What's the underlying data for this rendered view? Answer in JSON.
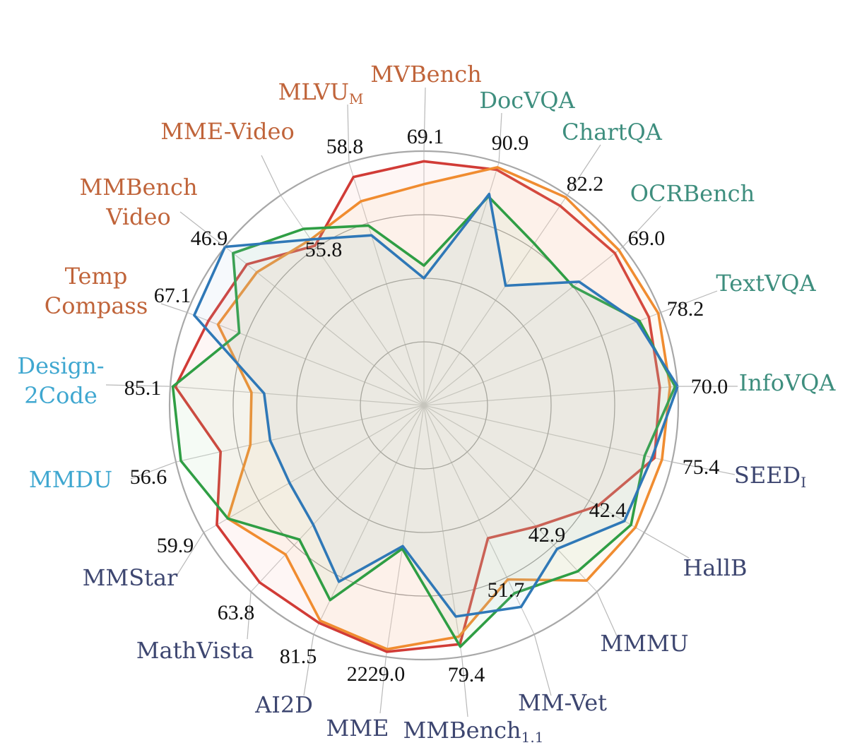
{
  "chart_data": {
    "type": "radar",
    "axes": [
      {
        "label": "MVBench",
        "sub": "",
        "group": "video",
        "value_label": "69.1"
      },
      {
        "label": "DocVQA",
        "sub": "",
        "group": "doc",
        "value_label": "90.9"
      },
      {
        "label": "ChartQA",
        "sub": "",
        "group": "doc",
        "value_label": "82.2"
      },
      {
        "label": "OCRBench",
        "sub": "",
        "group": "doc",
        "value_label": "69.0"
      },
      {
        "label": "TextVQA",
        "sub": "",
        "group": "doc",
        "value_label": "78.2"
      },
      {
        "label": "InfoVQA",
        "sub": "",
        "group": "doc",
        "value_label": "70.0"
      },
      {
        "label": "SEED",
        "sub": "I",
        "group": "general",
        "value_label": "75.4"
      },
      {
        "label": "HallB",
        "sub": "",
        "group": "general",
        "value_label": "42.4"
      },
      {
        "label": "MMMU",
        "sub": "",
        "group": "general",
        "value_label": "42.9"
      },
      {
        "label": "MM-Vet",
        "sub": "",
        "group": "general",
        "value_label": "51.7"
      },
      {
        "label": "MMBench",
        "sub": "1.1",
        "group": "general",
        "value_label": "79.4"
      },
      {
        "label": "MME",
        "sub": "",
        "group": "general",
        "value_label": "2229.0"
      },
      {
        "label": "AI2D",
        "sub": "",
        "group": "general",
        "value_label": "81.5"
      },
      {
        "label": "MathVista",
        "sub": "",
        "group": "general",
        "value_label": "63.8"
      },
      {
        "label": "MMStar",
        "sub": "",
        "group": "general",
        "value_label": "59.9"
      },
      {
        "label": "MMDU",
        "sub": "",
        "group": "design",
        "value_label": "56.6"
      },
      {
        "label": "Design-\n2Code",
        "sub": "",
        "group": "design",
        "value_label": "85.1"
      },
      {
        "label": "Temp\nCompass",
        "sub": "",
        "group": "video",
        "value_label": "67.1"
      },
      {
        "label": "MMBench\nVideo",
        "sub": "",
        "group": "video",
        "value_label": "46.9"
      },
      {
        "label": "MME-Video",
        "sub": "",
        "group": "video",
        "value_label": "55.8"
      },
      {
        "label": "MLVU",
        "sub": "M",
        "group": "video",
        "value_label": "58.8"
      }
    ],
    "range": [
      0,
      1
    ],
    "rings": [
      0.25,
      0.5,
      0.75,
      1.0
    ],
    "series": [
      {
        "color": "#d13b36",
        "fill": "#f4a9a0",
        "values": [
          0.96,
          0.97,
          0.95,
          0.96,
          0.95,
          0.93,
          0.93,
          0.79,
          0.65,
          0.58,
          0.95,
          0.98,
          0.95,
          0.95,
          0.94,
          0.82,
          0.98,
          0.91,
          0.89,
          0.76,
          0.94
        ]
      },
      {
        "color": "#f08c30",
        "fill": "#f7c08a",
        "values": [
          0.87,
          0.98,
          0.99,
          0.98,
          0.99,
          0.97,
          0.96,
          0.96,
          0.94,
          0.76,
          0.92,
          0.97,
          0.94,
          0.8,
          0.89,
          0.7,
          0.68,
          0.87,
          0.84,
          0.79,
          0.84
        ]
      },
      {
        "color": "#2f9e44",
        "fill": "#9fd39a",
        "values": [
          0.55,
          0.86,
          0.77,
          0.75,
          0.91,
          0.99,
          0.89,
          0.94,
          0.89,
          0.82,
          0.96,
          0.57,
          0.85,
          0.72,
          0.89,
          0.98,
          0.99,
          0.78,
          0.96,
          0.84,
          0.74
        ]
      },
      {
        "color": "#2f78b7",
        "fill": "#a7c8e6",
        "values": [
          0.5,
          0.87,
          0.57,
          0.78,
          0.9,
          1.0,
          0.92,
          0.91,
          0.77,
          0.88,
          0.84,
          0.56,
          0.77,
          0.64,
          0.61,
          0.62,
          0.63,
          0.97,
          1.0,
          0.79,
          0.7
        ]
      }
    ],
    "group_colors": {
      "video": "#c0643a",
      "doc": "#3e8e7e",
      "general": "#3d4670",
      "design": "#3fa7d0"
    }
  }
}
